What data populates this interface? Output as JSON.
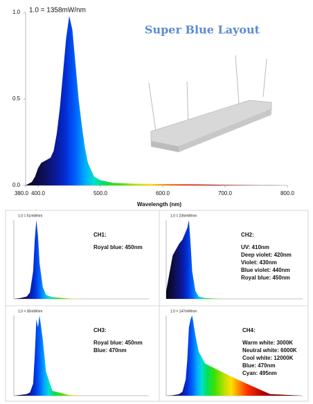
{
  "chart_data": [
    {
      "type": "area",
      "title": "Super Blue Layout",
      "annotation": "1.0 = 1358mW/nm",
      "x_label": "Wavelength (nm)",
      "x": [
        380,
        390,
        395,
        400,
        405,
        410,
        415,
        420,
        425,
        430,
        435,
        440,
        445,
        450,
        455,
        460,
        465,
        470,
        475,
        480,
        490,
        500,
        520,
        550,
        600,
        650,
        700,
        750,
        800
      ],
      "values": [
        0,
        0.02,
        0.05,
        0.1,
        0.13,
        0.14,
        0.15,
        0.16,
        0.2,
        0.3,
        0.45,
        0.65,
        0.85,
        0.98,
        0.9,
        0.7,
        0.5,
        0.35,
        0.22,
        0.13,
        0.05,
        0.03,
        0.015,
        0.01,
        0.008,
        0.006,
        0.003,
        0.001,
        0
      ],
      "xlim": [
        380,
        800
      ],
      "ylim": [
        0,
        1
      ],
      "xticks": [
        {
          "value": 380,
          "label": "380.0"
        },
        {
          "value": 400,
          "label": "400.0"
        },
        {
          "value": 500,
          "label": "500.0"
        },
        {
          "value": 600,
          "label": "600.0"
        },
        {
          "value": 700,
          "label": "700.0"
        },
        {
          "value": 800,
          "label": "800.0"
        }
      ],
      "yticks": [
        {
          "value": 0,
          "label": "0.0"
        },
        0.5,
        {
          "value": 1,
          "label": "1.0"
        }
      ]
    },
    {
      "type": "area",
      "annotation": "1.0 = 51mW/nm",
      "label": "CH1:",
      "lines": [
        "Royal blue: 450nm"
      ],
      "x": [
        380,
        400,
        420,
        430,
        440,
        445,
        450,
        455,
        460,
        470,
        480,
        500,
        550,
        600,
        700,
        800
      ],
      "values": [
        0,
        0.01,
        0.03,
        0.08,
        0.35,
        0.75,
        1,
        0.8,
        0.45,
        0.15,
        0.05,
        0.02,
        0.005,
        0,
        0,
        0
      ],
      "xlim": [
        380,
        800
      ],
      "ylim": [
        0,
        1
      ]
    },
    {
      "type": "area",
      "annotation": "1.0 = 236mW/nm",
      "label": "CH2:",
      "lines": [
        "UV: 410nm",
        "Deep violet: 420nm",
        "Violet: 430nm",
        "Blue violet: 440nm",
        "Royal blue: 450nm"
      ],
      "x": [
        380,
        400,
        420,
        430,
        440,
        445,
        450,
        455,
        460,
        470,
        480,
        500,
        550,
        600,
        700,
        800
      ],
      "values": [
        0.1,
        0.55,
        0.7,
        0.75,
        0.85,
        0.9,
        1,
        0.7,
        0.35,
        0.1,
        0.03,
        0.01,
        0,
        0,
        0,
        0
      ],
      "xlim": [
        380,
        800
      ],
      "ylim": [
        0,
        1
      ]
    },
    {
      "type": "area",
      "annotation": "1.0 = 35mW/nm",
      "label": "CH3:",
      "lines": [
        "Royal blue: 450nm",
        "Blue: 470nm"
      ],
      "x": [
        380,
        400,
        420,
        430,
        440,
        445,
        450,
        455,
        460,
        470,
        480,
        500,
        550,
        600,
        700,
        800
      ],
      "values": [
        0,
        0.01,
        0.02,
        0.04,
        0.15,
        0.5,
        0.95,
        0.85,
        1,
        0.7,
        0.3,
        0.06,
        0.01,
        0,
        0,
        0
      ],
      "xlim": [
        380,
        800
      ],
      "ylim": [
        0,
        1
      ]
    },
    {
      "type": "area",
      "annotation": "1.0 = 147mW/nm",
      "label": "CH4:",
      "lines": [
        "Warm white: 3000K",
        "Neutral white: 6000K",
        "Cool white: 12000K",
        "Blue: 470nm",
        "Cyan: 495nm"
      ],
      "x": [
        380,
        400,
        420,
        430,
        440,
        445,
        450,
        455,
        460,
        470,
        480,
        500,
        550,
        600,
        700,
        800
      ],
      "values": [
        0,
        0.005,
        0.02,
        0.05,
        0.2,
        0.45,
        0.85,
        0.95,
        1,
        0.75,
        0.55,
        0.4,
        0.3,
        0.2,
        0.02,
        0
      ],
      "xlim": [
        380,
        800
      ],
      "ylim": [
        0,
        1
      ]
    }
  ]
}
